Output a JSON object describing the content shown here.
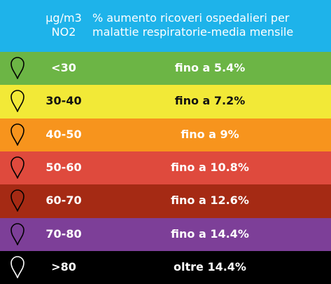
{
  "header": {
    "col1": "µg/m3\nNO2",
    "col2": "% aumento ricoveri ospedalieri per\nmalattie respiratorie-media mensile"
  },
  "rows": [
    {
      "range": "<30",
      "value": "fino a 5.4%",
      "color": "#6cb545",
      "text_color": "#ffffff",
      "pin_fill": "#6cb545",
      "icon": "map-pin-icon"
    },
    {
      "range": "30-40",
      "value": "fino a 7.2%",
      "color": "#f2e937",
      "text_color": "#111111",
      "pin_fill": "#f2e937",
      "icon": "map-pin-icon"
    },
    {
      "range": "40-50",
      "value": "fino a 9%",
      "color": "#f7941d",
      "text_color": "#ffffff",
      "pin_fill": "#f7941d",
      "icon": "map-pin-icon"
    },
    {
      "range": "50-60",
      "value": "fino a 10.8%",
      "color": "#df4a3d",
      "text_color": "#ffffff",
      "pin_fill": "#df4a3d",
      "icon": "map-pin-icon"
    },
    {
      "range": "60-70",
      "value": "fino a 12.6%",
      "color": "#a52a14",
      "text_color": "#ffffff",
      "pin_fill": "#a52a14",
      "icon": "map-pin-icon"
    },
    {
      "range": "70-80",
      "value": "fino a 14.4%",
      "color": "#7d3f98",
      "text_color": "#ffffff",
      "pin_fill": "#7d3f98",
      "icon": "map-pin-icon"
    },
    {
      "range": ">80",
      "value": "oltre 14.4%",
      "color": "#000000",
      "text_color": "#ffffff",
      "pin_fill": "#000000",
      "icon": "map-pin-icon"
    }
  ]
}
